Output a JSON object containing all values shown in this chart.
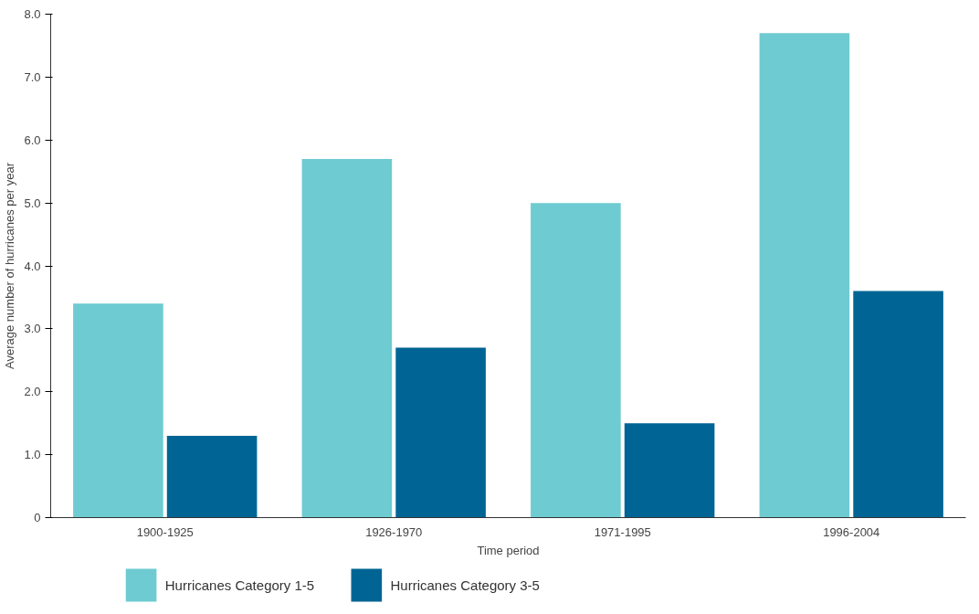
{
  "chart_data": {
    "type": "bar",
    "xlabel": "Time period",
    "ylabel": "Average number of hurricanes per year",
    "categories": [
      "1900-1925",
      "1926-1970",
      "1971-1995",
      "1996-2004"
    ],
    "series": [
      {
        "name": "Hurricanes Category 1-5",
        "color": "#6ecbd1",
        "values": [
          3.4,
          5.7,
          5.0,
          7.7
        ]
      },
      {
        "name": "Hurricanes Category 3-5",
        "color": "#006594",
        "values": [
          1.3,
          2.7,
          1.5,
          3.6
        ]
      }
    ],
    "ylim": [
      0,
      8
    ],
    "yticks": [
      0,
      {
        "value": 1,
        "label": "1.0"
      },
      {
        "value": 2,
        "label": "2.0"
      },
      {
        "value": 3,
        "label": "3.0"
      },
      {
        "value": 4,
        "label": "4.0"
      },
      {
        "value": 5,
        "label": "5.0"
      },
      {
        "value": 6,
        "label": "6.0"
      },
      {
        "value": 7,
        "label": "7.0"
      },
      {
        "value": 8,
        "label": "8.0"
      }
    ],
    "grid": false,
    "legend": "bottom"
  }
}
